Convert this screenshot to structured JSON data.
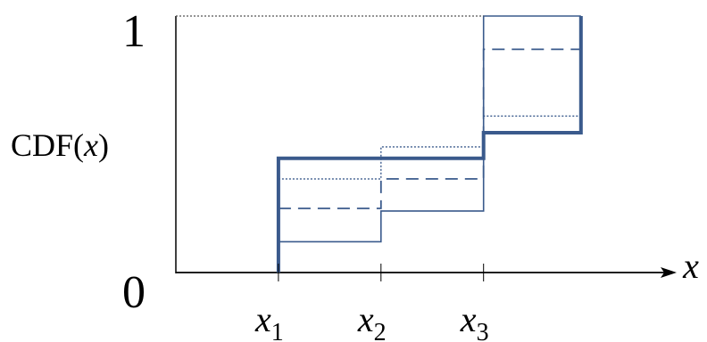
{
  "chart_data": {
    "type": "line",
    "step": true,
    "y_top_label": "1",
    "y_bottom_label": "0",
    "y_axis_label_prefix": "CDF(",
    "y_axis_label_var": "x",
    "y_axis_label_suffix": ")",
    "x_axis_label": "x",
    "x_ticks": [
      {
        "base": "x",
        "sub": "1",
        "value": 1
      },
      {
        "base": "x",
        "sub": "2",
        "value": 2
      },
      {
        "base": "x",
        "sub": "3",
        "value": 3
      }
    ],
    "xlim": [
      0.0,
      4.9
    ],
    "ylim": [
      0,
      1
    ],
    "series": [
      {
        "style": "thick-solid",
        "points": [
          [
            1,
            0
          ],
          [
            1,
            0.445
          ],
          [
            3,
            0.445
          ],
          [
            3,
            0.545
          ],
          [
            3.95,
            0.545
          ],
          [
            3.95,
            1.0
          ]
        ]
      },
      {
        "style": "thin-solid",
        "points": [
          [
            1,
            0.12
          ],
          [
            2,
            0.12
          ],
          [
            2,
            0.24
          ],
          [
            3,
            0.24
          ],
          [
            3,
            1.0
          ],
          [
            3.95,
            1.0
          ]
        ]
      },
      {
        "style": "dashed",
        "points": [
          [
            1,
            0.25
          ],
          [
            2,
            0.25
          ],
          [
            2,
            0.365
          ],
          [
            3,
            0.365
          ],
          [
            3,
            0.87
          ],
          [
            3.95,
            0.87
          ]
        ]
      },
      {
        "style": "dotted",
        "points": [
          [
            1,
            0.365
          ],
          [
            2,
            0.365
          ],
          [
            2,
            0.49
          ],
          [
            3,
            0.49
          ],
          [
            3,
            0.61
          ],
          [
            3.95,
            0.61
          ]
        ]
      },
      {
        "style": "dotted-ref",
        "points": [
          [
            0,
            1.0
          ],
          [
            3,
            1.0
          ]
        ]
      }
    ],
    "colors": {
      "line": "#3a5a8c",
      "axis": "#000000",
      "reference": "#555555"
    }
  }
}
